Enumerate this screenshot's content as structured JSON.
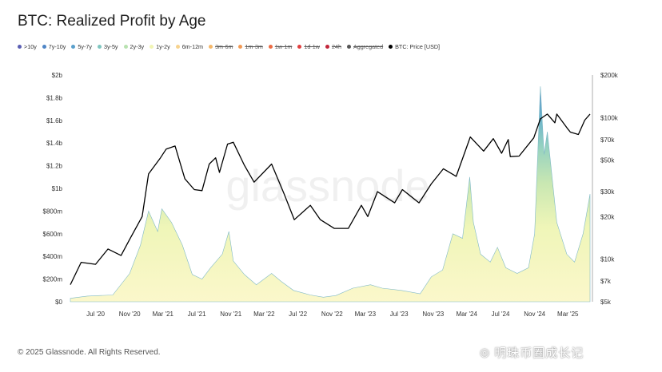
{
  "title": "BTC: Realized Profit by Age",
  "legend": [
    {
      "label": ">10y",
      "color": "#5b5fb3",
      "active": true
    },
    {
      "label": "7y-10y",
      "color": "#4f86c6",
      "active": true
    },
    {
      "label": "5y-7y",
      "color": "#5aa0cc",
      "active": true
    },
    {
      "label": "3y-5y",
      "color": "#7fc6c0",
      "active": true
    },
    {
      "label": "2y-3y",
      "color": "#b8e2b0",
      "active": true
    },
    {
      "label": "1y-2y",
      "color": "#f1f5b4",
      "active": true
    },
    {
      "label": "6m-12m",
      "color": "#f7d38e",
      "active": true
    },
    {
      "label": "3m-6m",
      "color": "#f5b86a",
      "active": false
    },
    {
      "label": "1m-3m",
      "color": "#f29a55",
      "active": false
    },
    {
      "label": "1w-1m",
      "color": "#ec6b43",
      "active": false
    },
    {
      "label": "1d-1w",
      "color": "#e04040",
      "active": false
    },
    {
      "label": "24h",
      "color": "#c2263a",
      "active": false
    },
    {
      "label": "Aggregated",
      "color": "#555555",
      "active": false
    },
    {
      "label": "BTC: Price [USD]",
      "color": "#000000",
      "active": true
    }
  ],
  "footer": "© 2025 Glassnode. All Rights Reserved.",
  "watermark": "glassnode",
  "watermark_cn": "明珠币圈成长记",
  "chart_data": {
    "type": "area",
    "title": "BTC: Realized Profit by Age",
    "x_ticks": [
      "Jul '20",
      "Nov '20",
      "Mar '21",
      "Jul '21",
      "Nov '21",
      "Mar '22",
      "Jul '22",
      "Nov '22",
      "Mar '23",
      "Jul '23",
      "Nov '23",
      "Mar '24",
      "Jul '24",
      "Nov '24",
      "Mar '25"
    ],
    "y_left_ticks": [
      "$0",
      "$200m",
      "$400m",
      "$600m",
      "$800m",
      "$1b",
      "$1.2b",
      "$1.4b",
      "$1.6b",
      "$1.8b",
      "$2b"
    ],
    "y_left_range": [
      0,
      2000000000
    ],
    "y_right_ticks": [
      "$5k",
      "$7k",
      "$10k",
      "$20k",
      "$30k",
      "$50k",
      "$70k",
      "$100k",
      "$200k"
    ],
    "y_right_range": [
      5000,
      200000
    ],
    "y_right_scale": "log",
    "x_range": [
      "2020-04-01",
      "2025-05-20"
    ],
    "profit_series": {
      "name": "Realized Profit (stacked by age)",
      "x": [
        "2020-04-01",
        "2020-06-01",
        "2020-09-01",
        "2020-11-01",
        "2020-12-10",
        "2021-01-08",
        "2021-02-10",
        "2021-02-25",
        "2021-04-01",
        "2021-05-10",
        "2021-06-15",
        "2021-07-20",
        "2021-08-20",
        "2021-10-01",
        "2021-10-25",
        "2021-11-10",
        "2021-12-20",
        "2022-02-01",
        "2022-03-28",
        "2022-05-01",
        "2022-06-15",
        "2022-08-15",
        "2022-10-01",
        "2022-11-15",
        "2023-01-15",
        "2023-03-20",
        "2023-05-01",
        "2023-07-10",
        "2023-09-15",
        "2023-10-25",
        "2023-12-05",
        "2024-01-11",
        "2024-02-15",
        "2024-03-12",
        "2024-03-25",
        "2024-04-20",
        "2024-05-25",
        "2024-06-20",
        "2024-07-20",
        "2024-08-30",
        "2024-10-10",
        "2024-11-01",
        "2024-11-22",
        "2024-12-05",
        "2024-12-17",
        "2025-01-20",
        "2025-02-25",
        "2025-03-25",
        "2025-04-25",
        "2025-05-20"
      ],
      "y": [
        30000000,
        50000000,
        60000000,
        250000000,
        500000000,
        800000000,
        620000000,
        820000000,
        700000000,
        500000000,
        240000000,
        200000000,
        300000000,
        420000000,
        620000000,
        360000000,
        240000000,
        150000000,
        250000000,
        180000000,
        100000000,
        60000000,
        40000000,
        55000000,
        120000000,
        150000000,
        120000000,
        100000000,
        70000000,
        220000000,
        280000000,
        600000000,
        560000000,
        1100000000,
        700000000,
        420000000,
        350000000,
        480000000,
        300000000,
        250000000,
        300000000,
        600000000,
        1900000000,
        1300000000,
        1500000000,
        700000000,
        420000000,
        350000000,
        600000000,
        950000000
      ]
    },
    "price_series": {
      "name": "BTC: Price [USD]",
      "x": [
        "2020-04-01",
        "2020-05-10",
        "2020-07-01",
        "2020-08-15",
        "2020-10-01",
        "2020-11-01",
        "2020-12-16",
        "2021-01-08",
        "2021-02-20",
        "2021-03-13",
        "2021-04-14",
        "2021-05-19",
        "2021-06-22",
        "2021-07-20",
        "2021-08-15",
        "2021-09-07",
        "2021-09-21",
        "2021-10-20",
        "2021-11-10",
        "2021-12-20",
        "2022-01-24",
        "2022-03-28",
        "2022-05-12",
        "2022-06-18",
        "2022-08-15",
        "2022-09-20",
        "2022-11-09",
        "2022-12-30",
        "2023-02-15",
        "2023-03-10",
        "2023-04-14",
        "2023-06-15",
        "2023-07-13",
        "2023-09-11",
        "2023-10-25",
        "2023-12-08",
        "2024-01-23",
        "2024-03-14",
        "2024-05-01",
        "2024-06-05",
        "2024-07-05",
        "2024-07-29",
        "2024-08-05",
        "2024-09-06",
        "2024-10-29",
        "2024-11-22",
        "2024-12-17",
        "2025-01-13",
        "2025-01-20",
        "2025-02-27",
        "2025-03-10",
        "2025-04-08",
        "2025-05-01",
        "2025-05-20"
      ],
      "y": [
        6600,
        9500,
        9200,
        11800,
        10600,
        13800,
        20000,
        40000,
        52000,
        60000,
        63000,
        37000,
        31000,
        30500,
        47000,
        52000,
        41000,
        65000,
        67000,
        46000,
        35000,
        47000,
        29000,
        19000,
        24000,
        19000,
        16500,
        16500,
        24000,
        20000,
        30000,
        25000,
        31000,
        25000,
        34000,
        43500,
        38500,
        73000,
        58000,
        71000,
        56000,
        70000,
        53000,
        53500,
        72000,
        98000,
        106000,
        92000,
        106000,
        84000,
        79000,
        76000,
        96000,
        106000
      ]
    }
  }
}
